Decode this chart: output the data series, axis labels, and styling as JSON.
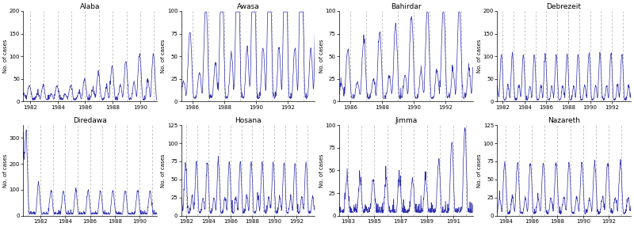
{
  "panels": [
    {
      "title": "Alaba",
      "xlim": [
        1981.5,
        1991.2
      ],
      "ylim": [
        0,
        200
      ],
      "yticks": [
        0,
        50,
        100,
        150,
        200
      ],
      "xticks": [
        1982,
        1984,
        1986,
        1988,
        1990
      ],
      "vlines": [
        1982,
        1983,
        1984,
        1985,
        1986,
        1987,
        1988,
        1989,
        1990,
        1991
      ],
      "row": 0,
      "col": 0,
      "seed": 10,
      "baseline": 5,
      "peak_scale": 0.35,
      "noise_scale": 3,
      "seasonal_phase": 0.7,
      "ramp_start": 1985.0,
      "ramp_end": 1991.0,
      "ramp_factor": 4.0
    },
    {
      "title": "Awasa",
      "xlim": [
        1985.3,
        1993.7
      ],
      "ylim": [
        0,
        100
      ],
      "yticks": [
        0,
        25,
        50,
        75,
        100
      ],
      "xticks": [
        1986,
        1988,
        1990,
        1992
      ],
      "vlines": [
        1986,
        1987,
        1988,
        1989,
        1990,
        1991,
        1992,
        1993
      ],
      "row": 0,
      "col": 1,
      "seed": 20,
      "baseline": 3,
      "peak_scale": 0.6,
      "noise_scale": 2,
      "seasonal_phase": 0.6,
      "ramp_start": 1985.5,
      "ramp_end": 1989.0,
      "ramp_factor": 3.0
    },
    {
      "title": "Bahirdar",
      "xlim": [
        1985.3,
        1993.7
      ],
      "ylim": [
        0,
        100
      ],
      "yticks": [
        0,
        25,
        50,
        75,
        100
      ],
      "xticks": [
        1986,
        1988,
        1990,
        1992
      ],
      "vlines": [
        1986,
        1987,
        1988,
        1989,
        1990,
        1991,
        1992,
        1993
      ],
      "row": 0,
      "col": 2,
      "seed": 30,
      "baseline": 3,
      "peak_scale": 0.5,
      "noise_scale": 2,
      "seasonal_phase": 0.6,
      "ramp_start": 1985.5,
      "ramp_end": 1991.0,
      "ramp_factor": 2.0
    },
    {
      "title": "Debrezeit",
      "xlim": [
        1981.5,
        1993.7
      ],
      "ylim": [
        0,
        200
      ],
      "yticks": [
        0,
        50,
        100,
        150,
        200
      ],
      "xticks": [
        1982,
        1984,
        1986,
        1988,
        1990,
        1992
      ],
      "vlines": [
        1982,
        1983,
        1984,
        1985,
        1986,
        1987,
        1988,
        1989,
        1990,
        1991,
        1992,
        1993
      ],
      "row": 0,
      "col": 3,
      "seed": 40,
      "baseline": 3,
      "peak_scale": 0.5,
      "noise_scale": 2,
      "seasonal_phase": 0.65,
      "ramp_start": 1981.5,
      "ramp_end": 1993.5,
      "ramp_factor": 1.0
    },
    {
      "title": "Diredawa",
      "xlim": [
        1980.6,
        1991.4
      ],
      "ylim": [
        0,
        350
      ],
      "yticks": [
        0,
        100,
        200,
        300
      ],
      "xticks": [
        1982,
        1984,
        1986,
        1988,
        1990
      ],
      "vlines": [
        1981,
        1982,
        1983,
        1984,
        1985,
        1986,
        1987,
        1988,
        1989,
        1990,
        1991
      ],
      "row": 1,
      "col": 0,
      "seed": 50,
      "baseline": 5,
      "peak_scale": 0.3,
      "noise_scale": 3,
      "seasonal_phase": 0.5,
      "ramp_start": 1980.6,
      "ramp_end": 1991.4,
      "ramp_factor": 1.0
    },
    {
      "title": "Hosana",
      "xlim": [
        1981.5,
        1993.7
      ],
      "ylim": [
        0,
        125
      ],
      "yticks": [
        0,
        25,
        50,
        75,
        100,
        125
      ],
      "xticks": [
        1982,
        1984,
        1986,
        1988,
        1990,
        1992
      ],
      "vlines": [
        1982,
        1983,
        1984,
        1985,
        1986,
        1987,
        1988,
        1989,
        1990,
        1991,
        1992,
        1993
      ],
      "row": 1,
      "col": 1,
      "seed": 60,
      "baseline": 3,
      "peak_scale": 0.55,
      "noise_scale": 2,
      "seasonal_phase": 0.65,
      "ramp_start": 1981.5,
      "ramp_end": 1993.5,
      "ramp_factor": 1.0
    },
    {
      "title": "Jimma",
      "xlim": [
        1982.3,
        1992.5
      ],
      "ylim": [
        0,
        100
      ],
      "yticks": [
        0,
        25,
        50,
        75,
        100
      ],
      "xticks": [
        1983,
        1985,
        1987,
        1989,
        1991
      ],
      "vlines": [
        1983,
        1984,
        1985,
        1986,
        1987,
        1988,
        1989,
        1990,
        1991,
        1992
      ],
      "row": 1,
      "col": 2,
      "seed": 70,
      "baseline": 3,
      "peak_scale": 0.5,
      "noise_scale": 2,
      "seasonal_phase": 0.6,
      "ramp_start": 1988.5,
      "ramp_end": 1992.0,
      "ramp_factor": 3.5
    },
    {
      "title": "Nazareth",
      "xlim": [
        1983.3,
        1993.7
      ],
      "ylim": [
        0,
        125
      ],
      "yticks": [
        0,
        25,
        50,
        75,
        100,
        125
      ],
      "xticks": [
        1984,
        1986,
        1988,
        1990,
        1992
      ],
      "vlines": [
        1984,
        1985,
        1986,
        1987,
        1988,
        1989,
        1990,
        1991,
        1992,
        1993
      ],
      "row": 1,
      "col": 3,
      "seed": 80,
      "baseline": 2,
      "peak_scale": 0.55,
      "noise_scale": 2,
      "seasonal_phase": 0.65,
      "ramp_start": 1983.5,
      "ramp_end": 1993.5,
      "ramp_factor": 1.0
    }
  ],
  "line_color": "#2222aa",
  "vline_color": "#999999",
  "ylabel": "No. of cases",
  "figsize": [
    8.0,
    2.87
  ],
  "dpi": 100
}
